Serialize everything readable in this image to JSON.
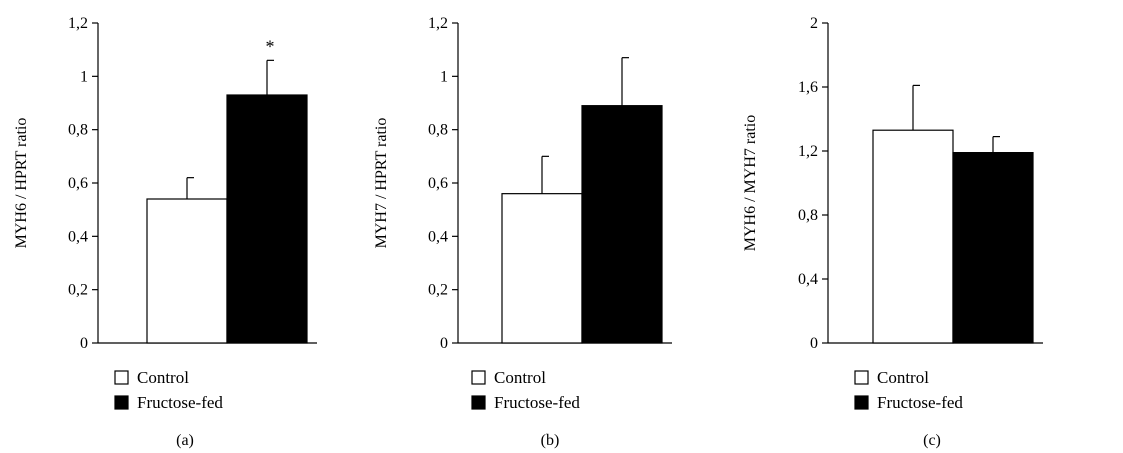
{
  "legend": {
    "control": "Control",
    "fructose": "Fructose-fed"
  },
  "colors": {
    "control_fill": "#ffffff",
    "fructose_fill": "#000000",
    "stroke": "#000000"
  },
  "chart_data": [
    {
      "type": "bar",
      "panel_label": "(a)",
      "ylabel": "MYH6 / HPRT ratio",
      "ylim": [
        0,
        1.2
      ],
      "yticks": [
        "0",
        "0,2",
        "0,4",
        "0,6",
        "0,8",
        "1",
        "1,2"
      ],
      "categories": [
        "Control",
        "Fructose-fed"
      ],
      "values": [
        0.54,
        0.93
      ],
      "errors": [
        0.08,
        0.13
      ],
      "annotation": "*",
      "annotation_on": 1
    },
    {
      "type": "bar",
      "panel_label": "(b)",
      "ylabel": "MYH7 / HPRT ratio",
      "ylim": [
        0,
        1.2
      ],
      "yticks": [
        "0",
        "0,2",
        "0,4",
        "0,6",
        "0,8",
        "1",
        "1,2"
      ],
      "categories": [
        "Control",
        "Fructose-fed"
      ],
      "values": [
        0.56,
        0.89
      ],
      "errors": [
        0.14,
        0.18
      ],
      "annotation": "",
      "annotation_on": -1
    },
    {
      "type": "bar",
      "panel_label": "(c)",
      "ylabel": "MYH6 / MYH7 ratio",
      "ylim": [
        0,
        2
      ],
      "yticks": [
        "0",
        "0,4",
        "0,8",
        "1,2",
        "1,6",
        "2"
      ],
      "categories": [
        "Control",
        "Fructose-fed"
      ],
      "values": [
        1.33,
        1.19
      ],
      "errors": [
        0.28,
        0.1
      ],
      "annotation": "",
      "annotation_on": -1
    }
  ]
}
